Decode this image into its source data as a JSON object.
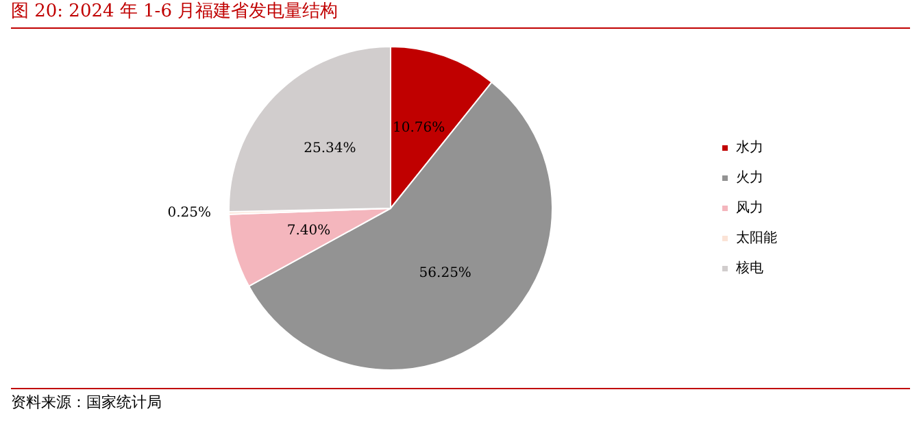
{
  "chart_data": {
    "type": "pie",
    "title": "图 20: 2024 年 1-6 月福建省发电量结构",
    "categories": [
      "水力",
      "火力",
      "风力",
      "太阳能",
      "核电"
    ],
    "values": [
      10.76,
      56.25,
      7.4,
      0.25,
      25.34
    ],
    "colors": [
      "#c00000",
      "#939393",
      "#f4b6bd",
      "#fbe3d6",
      "#d1cdcd"
    ],
    "value_labels": [
      "10.76%",
      "56.25%",
      "7.40%",
      "0.25%",
      "25.34%"
    ],
    "legend": "right",
    "annotations": [
      "资料来源：国家统计局"
    ]
  }
}
